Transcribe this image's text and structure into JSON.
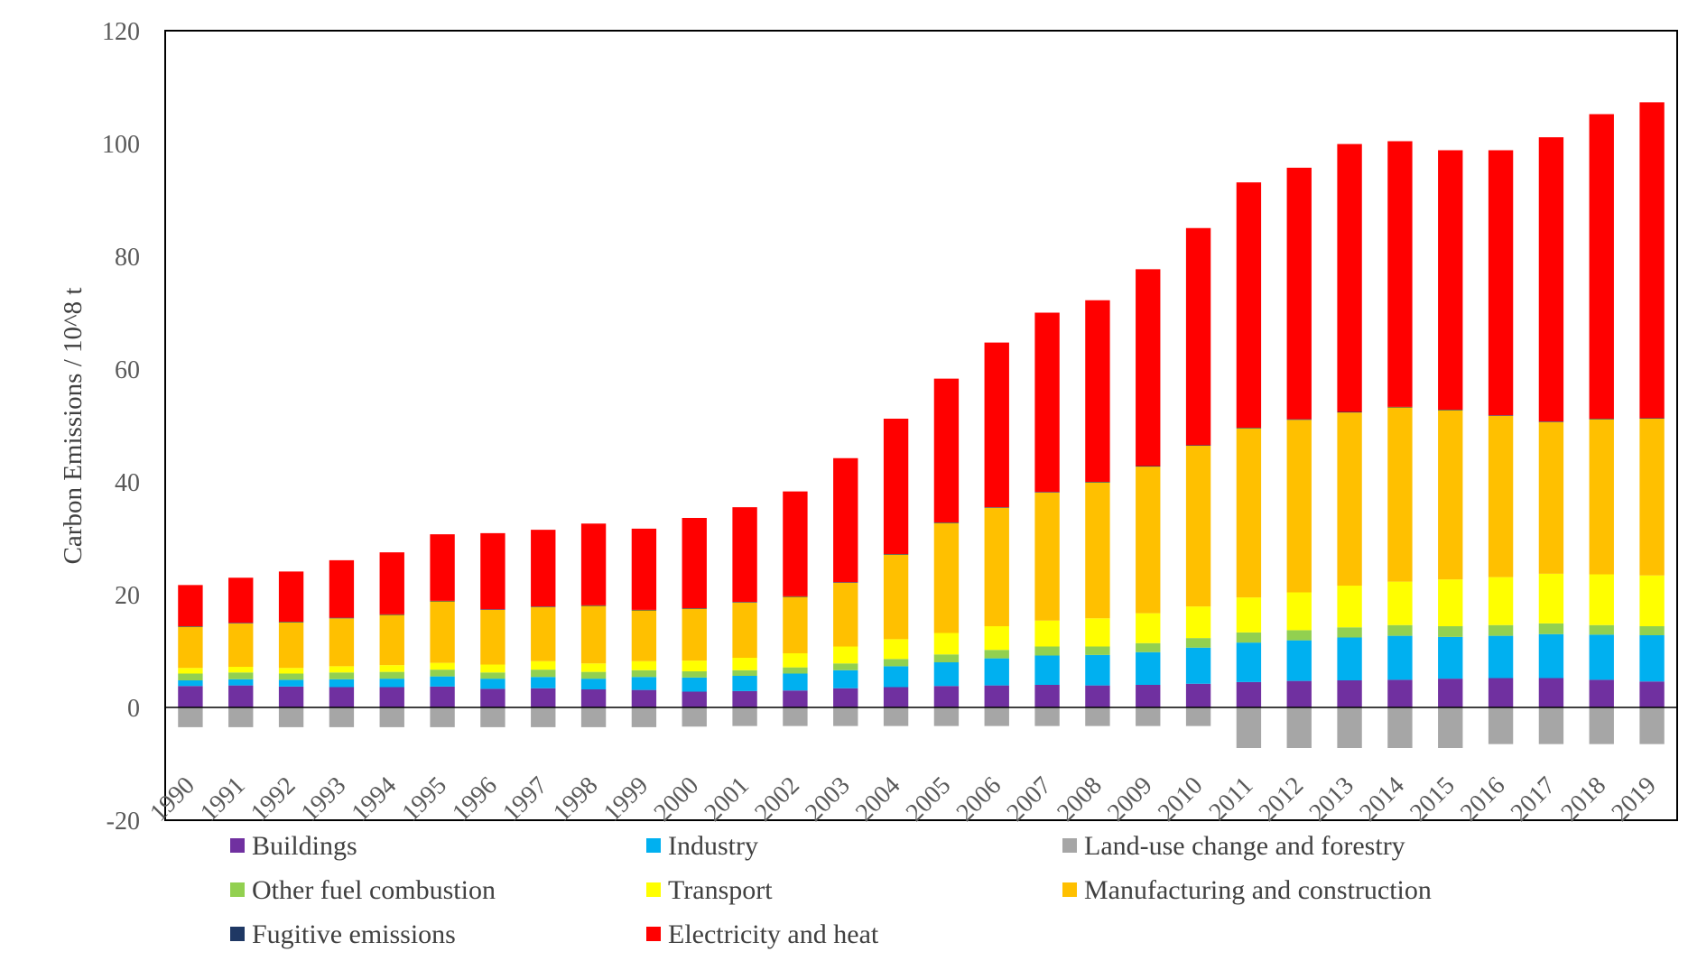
{
  "chart_data": {
    "type": "bar",
    "stacked": true,
    "title": "",
    "xlabel": "",
    "ylabel": "Carbon Emissions / 10^8 t",
    "ylim": [
      -20,
      120
    ],
    "yticks": [
      -20,
      0,
      20,
      40,
      60,
      80,
      100,
      120
    ],
    "grid": false,
    "legend_position": "bottom",
    "categories": [
      "1990",
      "1991",
      "1992",
      "1993",
      "1994",
      "1995",
      "1996",
      "1997",
      "1998",
      "1999",
      "2000",
      "2001",
      "2002",
      "2003",
      "2004",
      "2005",
      "2006",
      "2007",
      "2008",
      "2009",
      "2010",
      "2011",
      "2012",
      "2013",
      "2014",
      "2015",
      "2016",
      "2017",
      "2018",
      "2019"
    ],
    "series": [
      {
        "name": "Buildings",
        "color": "#7030A0",
        "values": [
          3.8,
          3.9,
          3.7,
          3.6,
          3.6,
          3.7,
          3.3,
          3.4,
          3.2,
          3.1,
          2.8,
          2.9,
          3.0,
          3.4,
          3.6,
          3.8,
          3.9,
          4.0,
          3.9,
          4.0,
          4.2,
          4.5,
          4.7,
          4.8,
          4.9,
          5.1,
          5.2,
          5.2,
          4.9,
          4.6
        ]
      },
      {
        "name": "Industry",
        "color": "#00B0F0",
        "values": [
          1.0,
          1.1,
          1.2,
          1.4,
          1.5,
          1.8,
          1.8,
          2.0,
          1.9,
          2.3,
          2.5,
          2.7,
          3.0,
          3.2,
          3.7,
          4.2,
          4.8,
          5.2,
          5.4,
          5.8,
          6.4,
          7.0,
          7.2,
          7.6,
          7.8,
          7.4,
          7.5,
          7.8,
          8.0,
          8.2
        ]
      },
      {
        "name": "Other fuel combustion",
        "color": "#92D050",
        "values": [
          1.2,
          1.2,
          1.1,
          1.2,
          1.2,
          1.2,
          1.1,
          1.3,
          1.2,
          1.2,
          1.1,
          1.0,
          1.1,
          1.2,
          1.3,
          1.4,
          1.5,
          1.6,
          1.5,
          1.6,
          1.7,
          1.8,
          1.8,
          1.8,
          1.9,
          1.9,
          1.9,
          1.9,
          1.7,
          1.6
        ]
      },
      {
        "name": "Transport",
        "color": "#FFFF00",
        "values": [
          1.0,
          1.0,
          1.0,
          1.1,
          1.2,
          1.2,
          1.4,
          1.5,
          1.5,
          1.6,
          1.9,
          2.2,
          2.5,
          3.0,
          3.5,
          3.8,
          4.2,
          4.6,
          5.0,
          5.3,
          5.6,
          6.2,
          6.7,
          7.4,
          7.7,
          8.3,
          8.5,
          8.8,
          9.0,
          9.0
        ]
      },
      {
        "name": "Manufacturing and construction",
        "color": "#FFC000",
        "values": [
          7.3,
          7.7,
          8.1,
          8.5,
          8.9,
          10.9,
          9.7,
          9.6,
          10.2,
          9.0,
          9.2,
          9.8,
          10.0,
          11.3,
          15.0,
          19.5,
          21.0,
          22.7,
          24.1,
          26.0,
          28.5,
          30.0,
          30.6,
          30.7,
          30.9,
          30.0,
          28.6,
          26.9,
          27.5,
          27.8
        ]
      },
      {
        "name": "Fugitive emissions",
        "color": "#1F3864",
        "values": [
          0.1,
          0.1,
          0.1,
          0.1,
          0.1,
          0.1,
          0.1,
          0.1,
          0.1,
          0.1,
          0.1,
          0.1,
          0.1,
          0.1,
          0.1,
          0.1,
          0.1,
          0.1,
          0.1,
          0.1,
          0.1,
          0.1,
          0.1,
          0.1,
          0.1,
          0.1,
          0.1,
          0.1,
          0.1,
          0.1
        ]
      },
      {
        "name": "Electricity and heat",
        "color": "#FF0000",
        "values": [
          7.3,
          8.0,
          8.9,
          10.2,
          11.0,
          11.8,
          13.5,
          13.6,
          14.5,
          14.4,
          16.0,
          16.8,
          18.6,
          22.0,
          24.0,
          25.5,
          29.2,
          31.8,
          32.2,
          34.9,
          38.5,
          43.5,
          44.6,
          47.5,
          47.1,
          46.0,
          47.0,
          50.4,
          54.0,
          56.0
        ]
      },
      {
        "name": "Land-use change and forestry",
        "color": "#A6A6A6",
        "values": [
          -3.5,
          -3.5,
          -3.5,
          -3.5,
          -3.5,
          -3.5,
          -3.5,
          -3.5,
          -3.5,
          -3.5,
          -3.4,
          -3.3,
          -3.3,
          -3.3,
          -3.3,
          -3.3,
          -3.3,
          -3.3,
          -3.3,
          -3.3,
          -3.3,
          -7.2,
          -7.2,
          -7.2,
          -7.2,
          -7.2,
          -6.5,
          -6.5,
          -6.5,
          -6.5
        ]
      }
    ],
    "legend": [
      {
        "name": "Buildings",
        "color": "#7030A0"
      },
      {
        "name": "Industry",
        "color": "#00B0F0"
      },
      {
        "name": "Land-use change and forestry",
        "color": "#A6A6A6"
      },
      {
        "name": "Other fuel combustion",
        "color": "#92D050"
      },
      {
        "name": "Transport",
        "color": "#FFFF00"
      },
      {
        "name": "Manufacturing and construction",
        "color": "#FFC000"
      },
      {
        "name": "Fugitive emissions",
        "color": "#1F3864"
      },
      {
        "name": "Electricity and heat",
        "color": "#FF0000"
      }
    ]
  }
}
